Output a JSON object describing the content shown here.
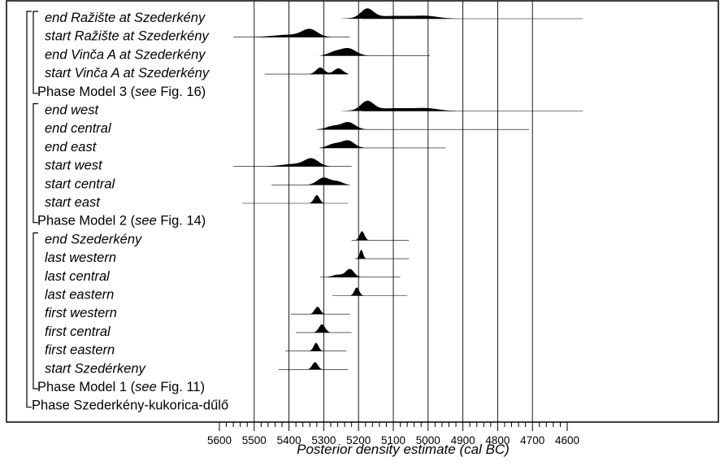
{
  "chart_data": {
    "type": "oxcal-multiplot",
    "xlabel": "Posterior density estimate (cal BC)",
    "x_ticks": [
      5600,
      5500,
      5400,
      5300,
      5200,
      5100,
      5000,
      4900,
      4800,
      4700,
      4600
    ],
    "x_range_cal_bc": [
      5610,
      4560
    ],
    "gridlines_cal_bc": [
      5500,
      5400,
      5300,
      5200,
      5100,
      5000,
      4900,
      4800,
      4700
    ],
    "rows": [
      {
        "label": "end Ražište at Szederkény",
        "italic": true,
        "range": [
          5190,
          4555
        ],
        "peaks": [
          {
            "c": 5175,
            "w": 18,
            "h": 11
          },
          {
            "c": 5090,
            "w": 70,
            "h": 3.5
          },
          {
            "c": 5000,
            "w": 30,
            "h": 2
          }
        ]
      },
      {
        "label": "start Ražište at Szederkény",
        "italic": true,
        "range": [
          5560,
          5225
        ],
        "peaks": [
          {
            "c": 5340,
            "w": 22,
            "h": 9
          },
          {
            "c": 5400,
            "w": 45,
            "h": 3
          }
        ]
      },
      {
        "label": "end Vinča A at Szederkény",
        "italic": true,
        "range": [
          5305,
          4995
        ],
        "peaks": [
          {
            "c": 5230,
            "w": 22,
            "h": 9
          },
          {
            "c": 5270,
            "w": 18,
            "h": 4
          }
        ]
      },
      {
        "label": "start Vinča A at Szederkény",
        "italic": true,
        "range": [
          5470,
          5230
        ],
        "peaks": [
          {
            "c": 5310,
            "w": 12,
            "h": 8
          },
          {
            "c": 5258,
            "w": 13,
            "h": 7
          }
        ]
      },
      {
        "label": "Phase Model 3",
        "suffix": " (see Fig. 16)",
        "italic": false,
        "group": true
      },
      {
        "label": "end west",
        "italic": true,
        "range": [
          5190,
          4555
        ],
        "peaks": [
          {
            "c": 5175,
            "w": 18,
            "h": 11
          },
          {
            "c": 5090,
            "w": 70,
            "h": 3.5
          },
          {
            "c": 5000,
            "w": 30,
            "h": 2
          }
        ]
      },
      {
        "label": "end central",
        "italic": true,
        "range": [
          5320,
          4710
        ],
        "peaks": [
          {
            "c": 5230,
            "w": 20,
            "h": 9
          },
          {
            "c": 5275,
            "w": 18,
            "h": 4
          }
        ]
      },
      {
        "label": "end east",
        "italic": true,
        "range": [
          5310,
          4950
        ],
        "peaks": [
          {
            "c": 5230,
            "w": 18,
            "h": 9
          },
          {
            "c": 5270,
            "w": 18,
            "h": 5
          }
        ]
      },
      {
        "label": "start west",
        "italic": true,
        "range": [
          5560,
          5220
        ],
        "peaks": [
          {
            "c": 5335,
            "w": 20,
            "h": 9
          },
          {
            "c": 5385,
            "w": 35,
            "h": 3
          }
        ]
      },
      {
        "label": "start central",
        "italic": true,
        "range": [
          5450,
          5225
        ],
        "peaks": [
          {
            "c": 5300,
            "w": 18,
            "h": 9
          },
          {
            "c": 5260,
            "w": 15,
            "h": 4
          }
        ]
      },
      {
        "label": "start east",
        "italic": true,
        "range": [
          5535,
          5230
        ],
        "peaks": [
          {
            "c": 5320,
            "w": 8,
            "h": 10
          }
        ]
      },
      {
        "label": "Phase Model 2",
        "suffix": " (see Fig. 14)",
        "italic": false,
        "group": true
      },
      {
        "label": "end Szederkény",
        "italic": true,
        "range": [
          5220,
          5055
        ],
        "peaks": [
          {
            "c": 5190,
            "w": 7,
            "h": 11
          }
        ]
      },
      {
        "label": "last western",
        "italic": true,
        "range": [
          5210,
          5055
        ],
        "peaks": [
          {
            "c": 5192,
            "w": 5,
            "h": 11
          }
        ]
      },
      {
        "label": "last central",
        "italic": true,
        "range": [
          5310,
          5080
        ],
        "peaks": [
          {
            "c": 5225,
            "w": 12,
            "h": 10
          },
          {
            "c": 5260,
            "w": 14,
            "h": 3
          }
        ]
      },
      {
        "label": "last eastern",
        "italic": true,
        "range": [
          5275,
          5060
        ],
        "peaks": [
          {
            "c": 5205,
            "w": 7,
            "h": 10
          }
        ]
      },
      {
        "label": "first western",
        "italic": true,
        "range": [
          5395,
          5225
        ],
        "peaks": [
          {
            "c": 5318,
            "w": 8,
            "h": 9
          }
        ]
      },
      {
        "label": "first central",
        "italic": true,
        "range": [
          5380,
          5220
        ],
        "peaks": [
          {
            "c": 5305,
            "w": 9,
            "h": 10
          }
        ]
      },
      {
        "label": "first eastern",
        "italic": true,
        "range": [
          5410,
          5235
        ],
        "peaks": [
          {
            "c": 5322,
            "w": 7,
            "h": 10
          }
        ]
      },
      {
        "label": "start Szedérkeny",
        "italic": true,
        "range": [
          5430,
          5230
        ],
        "peaks": [
          {
            "c": 5325,
            "w": 8,
            "h": 9
          }
        ]
      },
      {
        "label": "Phase Model 1",
        "suffix": " (see Fig. 11)",
        "italic": false,
        "group": true
      },
      {
        "label": "Phase Szederkény-kukorica-dűlő",
        "italic": false,
        "group": true,
        "outer": true
      }
    ],
    "brackets": [
      {
        "from": 0,
        "to": 4
      },
      {
        "from": 5,
        "to": 11
      },
      {
        "from": 12,
        "to": 20
      },
      {
        "from": 0,
        "to": 21,
        "outer": true
      }
    ]
  }
}
